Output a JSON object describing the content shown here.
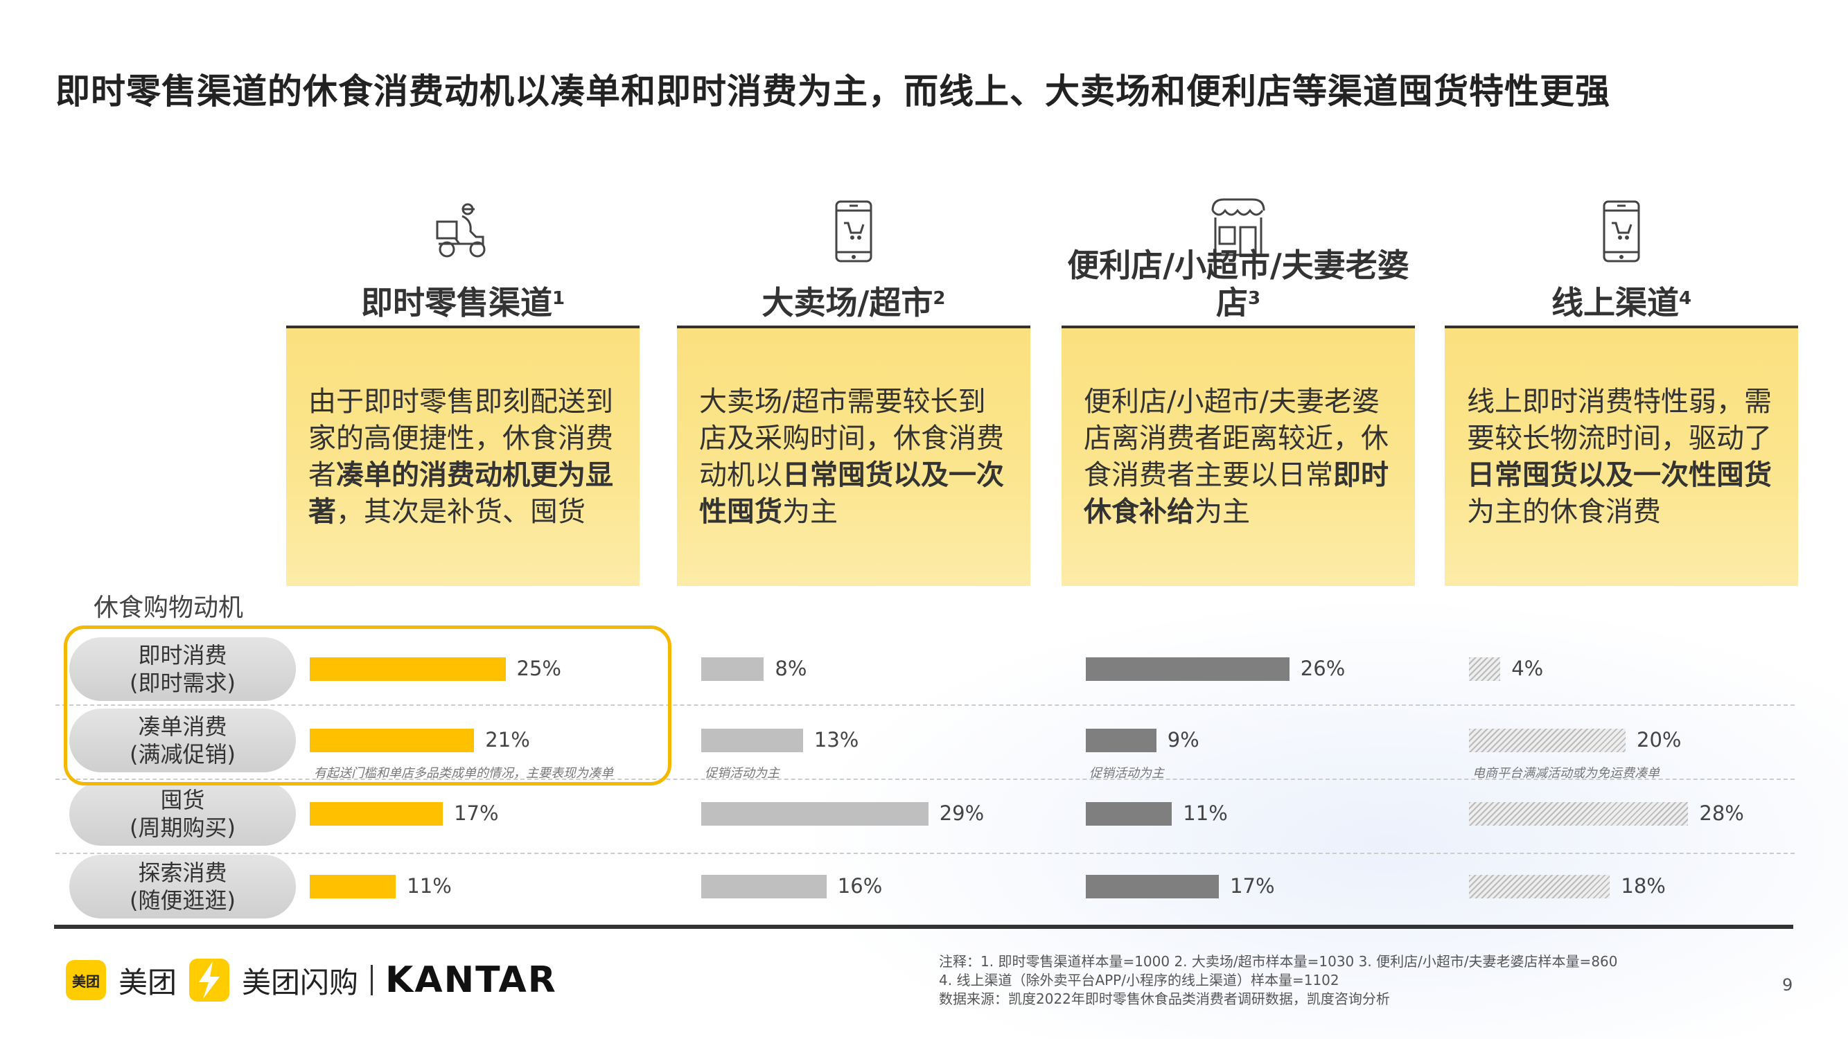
{
  "title": "即时零售渠道的休食消费动机以凑单和即时消费为主，而线上、大卖场和便利店等渠道囤货特性更强",
  "columns": [
    {
      "name": "即时零售渠道",
      "sup": "1",
      "icon": "delivery-scooter-icon",
      "desc": [
        {
          "t": "由于即时零售即刻配送到家的高便捷性，休食消费者"
        },
        {
          "t": "凑单的消费动机更为显著",
          "b": true
        },
        {
          "t": "，其次是补货、囤货"
        }
      ],
      "color": "#ffc000",
      "style": "solid",
      "note": "有起送门槛和单店多品类成单的情况，主要表现为凑单",
      "values": [
        25,
        21,
        17,
        11
      ]
    },
    {
      "name": "大卖场/超市",
      "sup": "2",
      "icon": "phone-cart-icon",
      "desc": [
        {
          "t": "大卖场/超市需要较长到店及采购时间，休食消费动机以"
        },
        {
          "t": "日常囤货以及一次性囤货",
          "b": true
        },
        {
          "t": "为主"
        }
      ],
      "color": "#bfbfbf",
      "style": "solid",
      "note": "促销活动为主",
      "values": [
        8,
        13,
        29,
        16
      ]
    },
    {
      "name": "便利店/小超市/夫妻老婆店",
      "sup": "3",
      "icon": "store-icon",
      "desc": [
        {
          "t": "便利店/小超市/夫妻老婆店离消费者距离较近，休食消费者主要以日常"
        },
        {
          "t": "即时休食补给",
          "b": true
        },
        {
          "t": "为主"
        }
      ],
      "color": "#7f7f7f",
      "style": "solid",
      "note": "促销活动为主",
      "values": [
        26,
        9,
        11,
        17
      ]
    },
    {
      "name": "线上渠道",
      "sup": "4",
      "icon": "phone-cart-icon",
      "desc": [
        {
          "t": "线上即时消费特性弱，需要较长物流时间，驱动了"
        },
        {
          "t": "日常囤货以及一次性囤货",
          "b": true
        },
        {
          "t": "为主的休食消费"
        }
      ],
      "color": "#d9d9d9",
      "style": "hatched",
      "note": "电商平台满减活动或为免运费凑单",
      "values": [
        4,
        20,
        28,
        18
      ]
    }
  ],
  "motive_label": "休食购物动机",
  "rows": [
    {
      "line1": "即时消费",
      "line2": "(即时需求)"
    },
    {
      "line1": "凑单消费",
      "line2": "(满减促销)"
    },
    {
      "line1": "囤货",
      "line2": "(周期购买)"
    },
    {
      "line1": "探索消费",
      "line2": "(随便逛逛)"
    }
  ],
  "highlight_color": "#f5b800",
  "logos": {
    "meituan_badge": "美团",
    "meituan": "美团",
    "shangou": "美团闪购",
    "kantar": "KANTAR"
  },
  "footnotes": [
    "注释：1.  即时零售渠道样本量=1000 2. 大卖场/超市样本量=1030 3.  便利店/小超市/夫妻老婆店样本量=860",
    "4. 线上渠道（除外卖平台APP/小程序的线上渠道）样本量=1102",
    "数据来源：凯度2022年即时零售休食品类消费者调研数据，凯度咨询分析"
  ],
  "page_number": "9"
}
